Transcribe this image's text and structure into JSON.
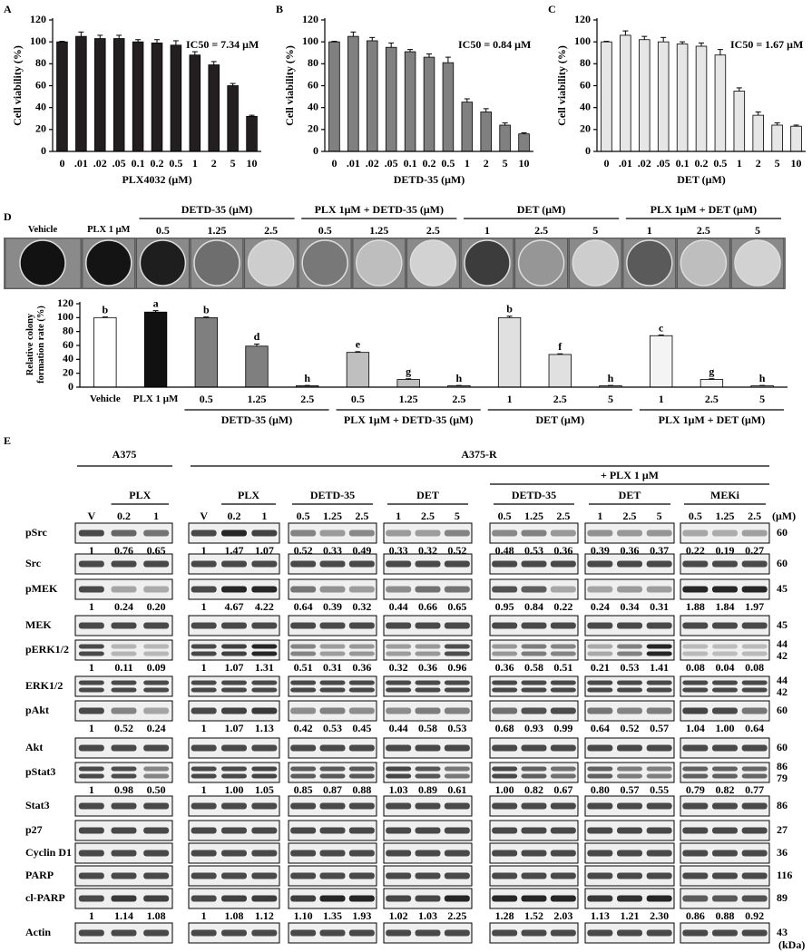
{
  "chart_data": [
    {
      "type": "bar",
      "label": "A",
      "xlabel": "PLX4032 (μM)",
      "ylabel": "Cell viability (%)",
      "annotation": "IC50 = 7.34 μM",
      "categories": [
        "0",
        ".01",
        ".02",
        ".05",
        "0.1",
        "0.2",
        "0.5",
        "1",
        "2",
        "5",
        "10"
      ],
      "values": [
        100,
        105,
        103,
        103,
        100,
        99,
        97,
        88,
        79,
        60,
        32
      ],
      "errors": [
        0.5,
        4,
        3,
        3,
        2,
        3,
        4,
        3,
        3,
        2,
        1
      ],
      "color": "#231f20",
      "ylim": [
        0,
        120
      ],
      "yticks": [
        0,
        20,
        40,
        60,
        80,
        100,
        120
      ]
    },
    {
      "type": "bar",
      "label": "B",
      "xlabel": "DETD-35 (μM)",
      "ylabel": "Cell viability (%)",
      "annotation": "IC50 = 0.84 μM",
      "categories": [
        "0",
        ".01",
        ".02",
        ".05",
        "0.1",
        "0.2",
        "0.5",
        "1",
        "2",
        "5",
        "10"
      ],
      "values": [
        100,
        105,
        101,
        95,
        91,
        86,
        81,
        45,
        36,
        24,
        16
      ],
      "errors": [
        0.5,
        4,
        3,
        4,
        2,
        3,
        5,
        3,
        3,
        2,
        1
      ],
      "color": "#808080",
      "ylim": [
        0,
        120
      ],
      "yticks": [
        0,
        20,
        40,
        60,
        80,
        100,
        120
      ]
    },
    {
      "type": "bar",
      "label": "C",
      "xlabel": "DET (μM)",
      "ylabel": "Cell viability (%)",
      "annotation": "IC50 = 1.67 μM",
      "categories": [
        "0",
        ".01",
        ".02",
        ".05",
        "0.1",
        "0.2",
        "0.5",
        "1",
        "2",
        "5",
        "10"
      ],
      "values": [
        100,
        106,
        102,
        100,
        98,
        96,
        88,
        55,
        33,
        24,
        23
      ],
      "errors": [
        0.5,
        4,
        3,
        4,
        2,
        3,
        5,
        3,
        3,
        2,
        1
      ],
      "color": "#e6e6e6",
      "ylim": [
        0,
        120
      ],
      "yticks": [
        0,
        20,
        40,
        60,
        80,
        100,
        120
      ]
    },
    {
      "type": "grouped-bar",
      "label": "D",
      "ylabel": "Relative colony formation rate (%)",
      "ylim": [
        0,
        120
      ],
      "yticks": [
        0,
        20,
        40,
        60,
        80,
        100,
        120
      ],
      "groups": [
        {
          "categories": [
            "Vehicle"
          ],
          "values": [
            100
          ],
          "errors": [
            1
          ],
          "letters": [
            "b"
          ],
          "color": "#ffffff"
        },
        {
          "categories": [
            "PLX 1 μM"
          ],
          "values": [
            108
          ],
          "errors": [
            2
          ],
          "letters": [
            "a"
          ],
          "color": "#111111"
        },
        {
          "name": "DETD-35 (μM)",
          "categories": [
            "0.5",
            "1.25",
            "2.5"
          ],
          "values": [
            100,
            59,
            2
          ],
          "errors": [
            1,
            3,
            0.5
          ],
          "letters": [
            "b",
            "d",
            "h"
          ],
          "color": "#7f7f7f"
        },
        {
          "name": "PLX 1μM + DETD-35 (μM)",
          "categories": [
            "0.5",
            "1.25",
            "2.5"
          ],
          "values": [
            50,
            11,
            2
          ],
          "errors": [
            1,
            1,
            0.5
          ],
          "letters": [
            "e",
            "g",
            "h"
          ],
          "color": "#bfbfbf"
        },
        {
          "name": "DET (μM)",
          "categories": [
            "1",
            "2.5",
            "5"
          ],
          "values": [
            100,
            47,
            2
          ],
          "errors": [
            2,
            1,
            0.5
          ],
          "letters": [
            "b",
            "f",
            "h"
          ],
          "color": "#e0e0e0"
        },
        {
          "name": "PLX 1μM + DET (μM)",
          "categories": [
            "1",
            "2.5",
            "5"
          ],
          "values": [
            74,
            11,
            2
          ],
          "errors": [
            1,
            1,
            0.5
          ],
          "letters": [
            "c",
            "g",
            "h"
          ],
          "color": "#f4f4f4"
        }
      ]
    }
  ],
  "blot": {
    "label": "E",
    "cell_lines": [
      "A375",
      "A375-R"
    ],
    "plx_header": "+ PLX 1 μM",
    "unit": "(μM)",
    "kda_unit": "(kDa)",
    "boxes": [
      {
        "group": "PLX",
        "lanes": [
          "V",
          "0.2",
          "1"
        ]
      },
      {
        "group": "PLX",
        "lanes": [
          "V",
          "0.2",
          "1"
        ]
      },
      {
        "group": "DETD-35",
        "lanes": [
          "0.5",
          "1.25",
          "2.5"
        ]
      },
      {
        "group": "DET",
        "lanes": [
          "1",
          "2.5",
          "5"
        ]
      },
      {
        "group": "DETD-35",
        "lanes": [
          "0.5",
          "1.25",
          "2.5"
        ]
      },
      {
        "group": "DET",
        "lanes": [
          "1",
          "2.5",
          "5"
        ]
      },
      {
        "group": "MEKi",
        "lanes": [
          "0.5",
          "1.25",
          "2.5"
        ]
      }
    ],
    "rows": [
      {
        "name": "pSrc",
        "kda": [
          "60"
        ],
        "quant": [
          "1",
          "0.76",
          "0.65",
          "1",
          "1.47",
          "1.07",
          "0.52",
          "0.33",
          "0.49",
          "0.33",
          "0.32",
          "0.52",
          "0.48",
          "0.53",
          "0.36",
          "0.39",
          "0.36",
          "0.37",
          "0.22",
          "0.19",
          "0.27"
        ]
      },
      {
        "name": "Src",
        "kda": [
          "60"
        ]
      },
      {
        "name": "pMEK",
        "kda": [
          "45"
        ],
        "quant": [
          "1",
          "0.24",
          "0.20",
          "1",
          "4.67",
          "4.22",
          "0.64",
          "0.39",
          "0.32",
          "0.44",
          "0.66",
          "0.65",
          "0.95",
          "0.84",
          "0.22",
          "0.24",
          "0.34",
          "0.31",
          "1.88",
          "1.84",
          "1.97"
        ]
      },
      {
        "name": "MEK",
        "kda": [
          "45"
        ]
      },
      {
        "name": "pERK1/2",
        "kda": [
          "44",
          "42"
        ],
        "quant": [
          "1",
          "0.11",
          "0.09",
          "1",
          "1.07",
          "1.31",
          "0.51",
          "0.31",
          "0.36",
          "0.32",
          "0.36",
          "0.96",
          "0.36",
          "0.58",
          "0.51",
          "0.21",
          "0.53",
          "1.41",
          "0.08",
          "0.04",
          "0.08"
        ]
      },
      {
        "name": "ERK1/2",
        "kda": [
          "44",
          "42"
        ]
      },
      {
        "name": "pAkt",
        "kda": [
          "60"
        ],
        "quant": [
          "1",
          "0.52",
          "0.24",
          "1",
          "1.07",
          "1.13",
          "0.42",
          "0.53",
          "0.45",
          "0.44",
          "0.58",
          "0.53",
          "0.68",
          "0.93",
          "0.99",
          "0.64",
          "0.52",
          "0.57",
          "1.04",
          "1.00",
          "0.64"
        ]
      },
      {
        "name": "Akt",
        "kda": [
          "60"
        ]
      },
      {
        "name": "pStat3",
        "kda": [
          "86",
          "79"
        ],
        "quant": [
          "1",
          "0.98",
          "0.50",
          "1",
          "1.00",
          "1.05",
          "0.85",
          "0.87",
          "0.88",
          "1.03",
          "0.89",
          "0.61",
          "1.00",
          "0.82",
          "0.67",
          "0.80",
          "0.57",
          "0.55",
          "0.79",
          "0.82",
          "0.77"
        ]
      },
      {
        "name": "Stat3",
        "kda": [
          "86"
        ]
      },
      {
        "name": "p27",
        "kda": [
          "27"
        ]
      },
      {
        "name": "Cyclin D1",
        "kda": [
          "36"
        ]
      },
      {
        "name": "PARP",
        "kda": [
          "116"
        ]
      },
      {
        "name": "cl-PARP",
        "kda": [
          "89"
        ],
        "quant": [
          "1",
          "1.14",
          "1.08",
          "1",
          "1.08",
          "1.12",
          "1.10",
          "1.35",
          "1.93",
          "1.02",
          "1.03",
          "2.25",
          "1.28",
          "1.52",
          "2.03",
          "1.13",
          "1.21",
          "2.30",
          "0.86",
          "0.88",
          "0.92"
        ]
      },
      {
        "name": "Actin",
        "kda": [
          "43"
        ]
      }
    ]
  }
}
